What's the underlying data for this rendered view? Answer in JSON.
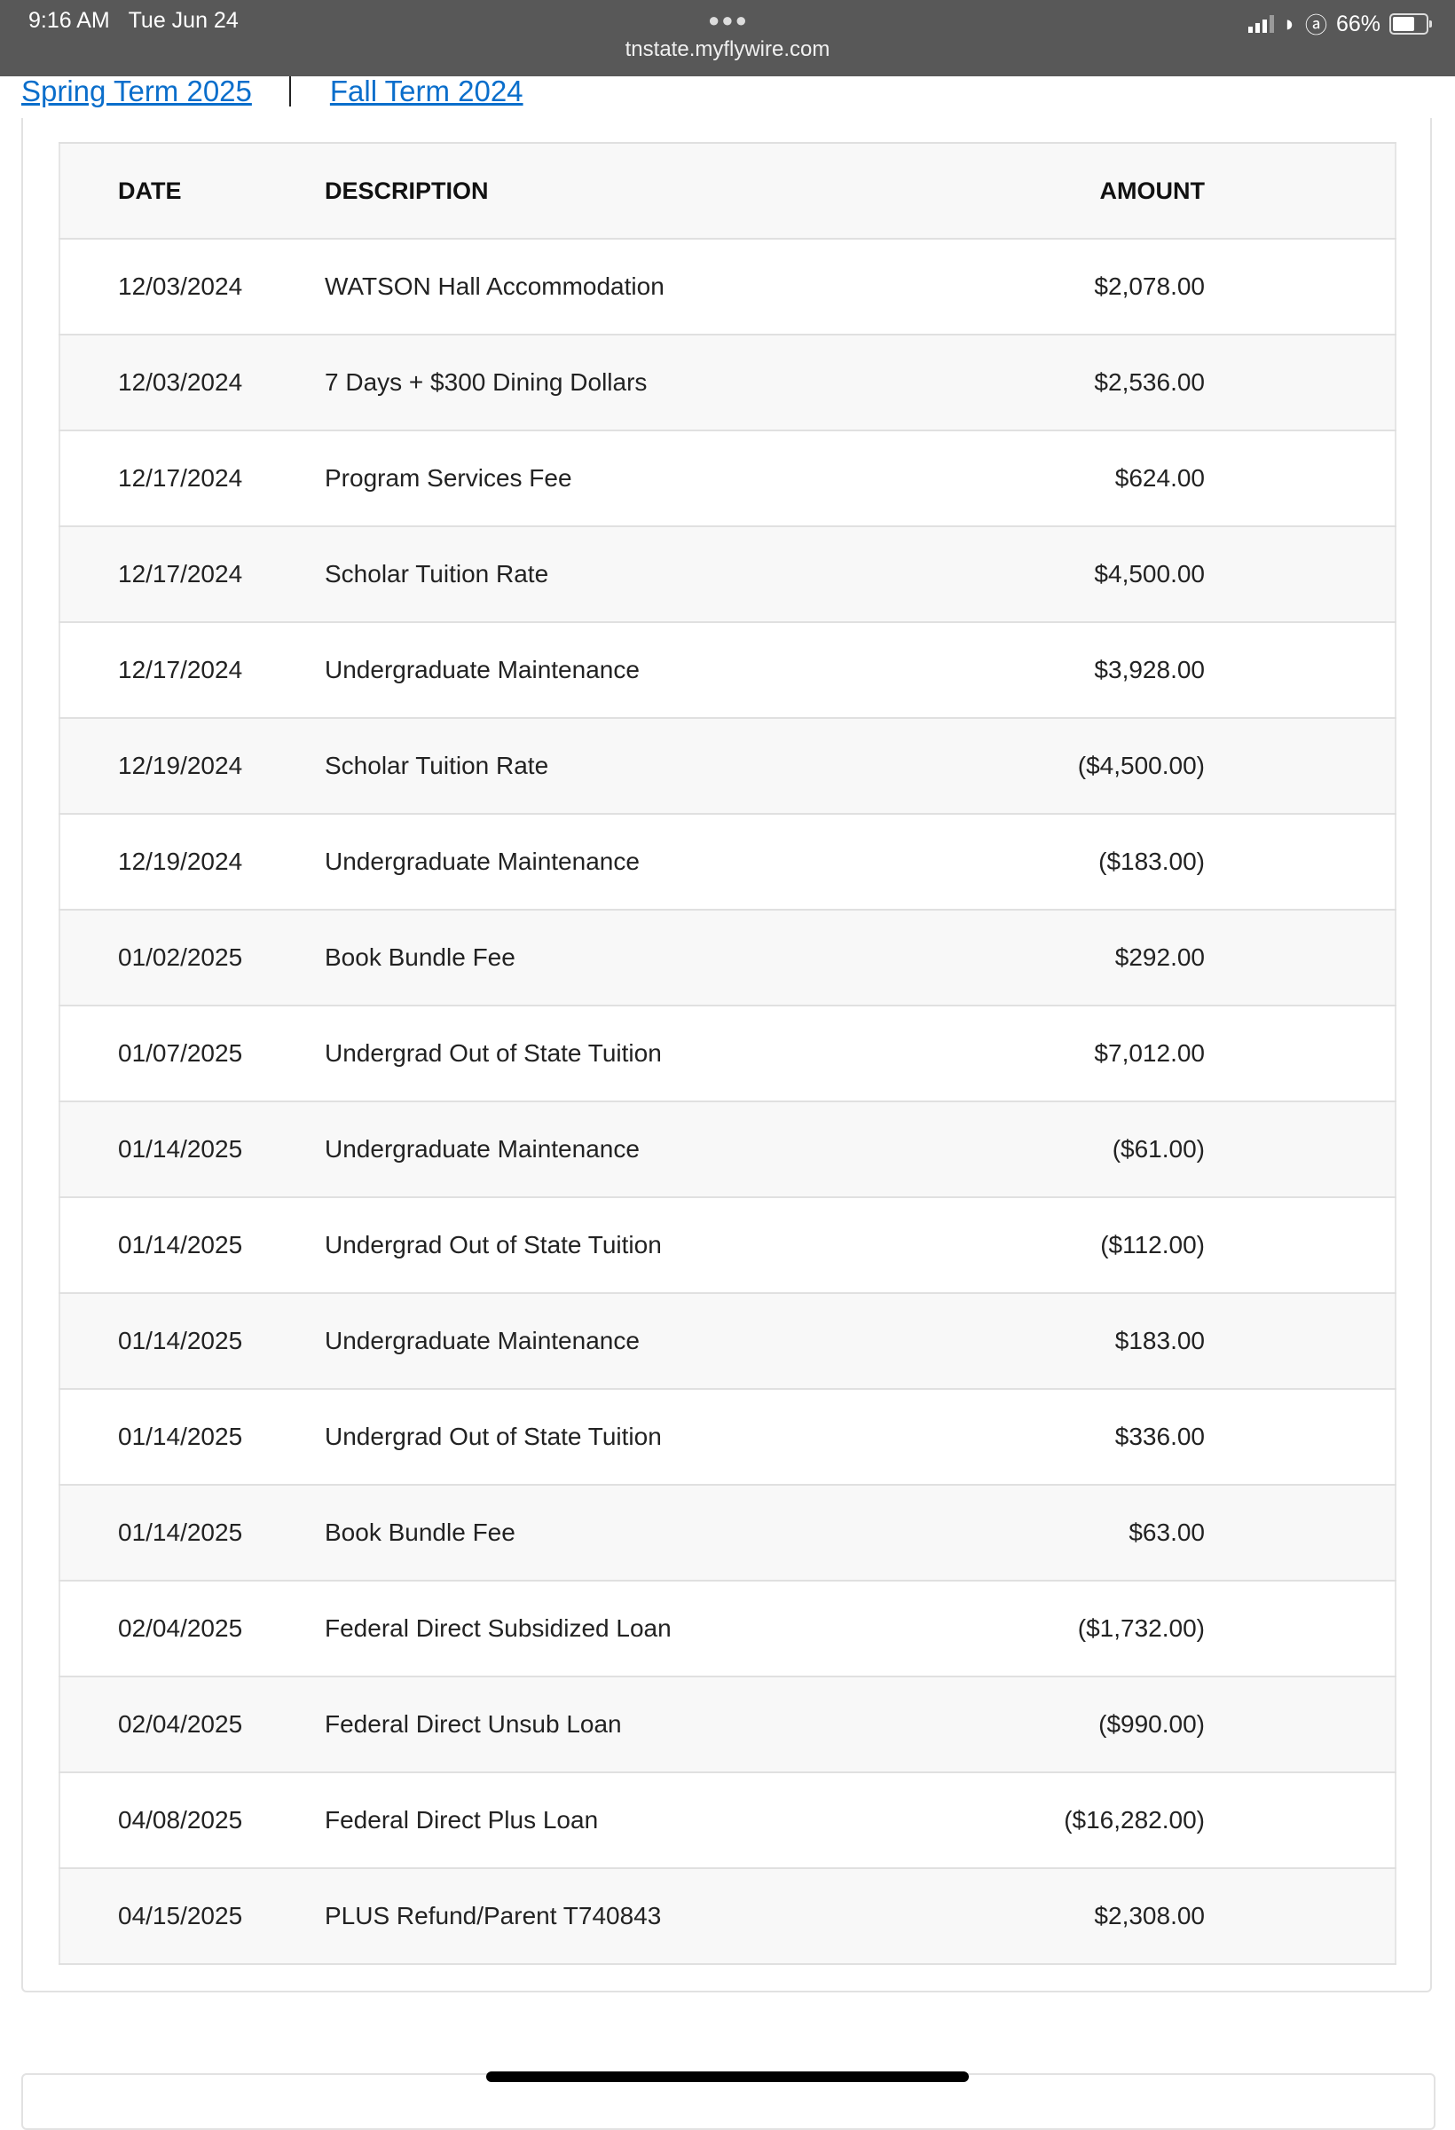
{
  "status_bar": {
    "time": "9:16 AM",
    "date": "Tue Jun 24",
    "url": "tnstate.myflywire.com",
    "battery": "66%"
  },
  "terms": [
    {
      "label": "Spring Term 2025"
    },
    {
      "label": "Fall Term 2024"
    }
  ],
  "table": {
    "headers": {
      "date": "DATE",
      "description": "DESCRIPTION",
      "amount": "AMOUNT"
    },
    "rows": [
      {
        "date": "12/03/2024",
        "description": "WATSON Hall Accommodation",
        "amount": "$2,078.00"
      },
      {
        "date": "12/03/2024",
        "description": "7 Days + $300 Dining Dollars",
        "amount": "$2,536.00"
      },
      {
        "date": "12/17/2024",
        "description": "Program Services Fee",
        "amount": "$624.00"
      },
      {
        "date": "12/17/2024",
        "description": "Scholar Tuition Rate",
        "amount": "$4,500.00"
      },
      {
        "date": "12/17/2024",
        "description": "Undergraduate Maintenance",
        "amount": "$3,928.00"
      },
      {
        "date": "12/19/2024",
        "description": "Scholar Tuition Rate",
        "amount": "($4,500.00)"
      },
      {
        "date": "12/19/2024",
        "description": "Undergraduate Maintenance",
        "amount": "($183.00)"
      },
      {
        "date": "01/02/2025",
        "description": "Book Bundle Fee",
        "amount": "$292.00"
      },
      {
        "date": "01/07/2025",
        "description": "Undergrad Out of State Tuition",
        "amount": "$7,012.00"
      },
      {
        "date": "01/14/2025",
        "description": "Undergraduate Maintenance",
        "amount": "($61.00)"
      },
      {
        "date": "01/14/2025",
        "description": "Undergrad Out of State Tuition",
        "amount": "($112.00)"
      },
      {
        "date": "01/14/2025",
        "description": "Undergraduate Maintenance",
        "amount": "$183.00"
      },
      {
        "date": "01/14/2025",
        "description": "Undergrad Out of State Tuition",
        "amount": "$336.00"
      },
      {
        "date": "01/14/2025",
        "description": "Book Bundle Fee",
        "amount": "$63.00"
      },
      {
        "date": "02/04/2025",
        "description": "Federal Direct Subsidized Loan",
        "amount": "($1,732.00)"
      },
      {
        "date": "02/04/2025",
        "description": "Federal Direct Unsub Loan",
        "amount": "($990.00)"
      },
      {
        "date": "04/08/2025",
        "description": "Federal Direct Plus Loan",
        "amount": "($16,282.00)"
      },
      {
        "date": "04/15/2025",
        "description": "PLUS Refund/Parent T740843",
        "amount": "$2,308.00"
      }
    ]
  },
  "colors": {
    "link": "#0a6ecb",
    "status_bar": "#585858",
    "row_alt": "#f8f8f8"
  }
}
